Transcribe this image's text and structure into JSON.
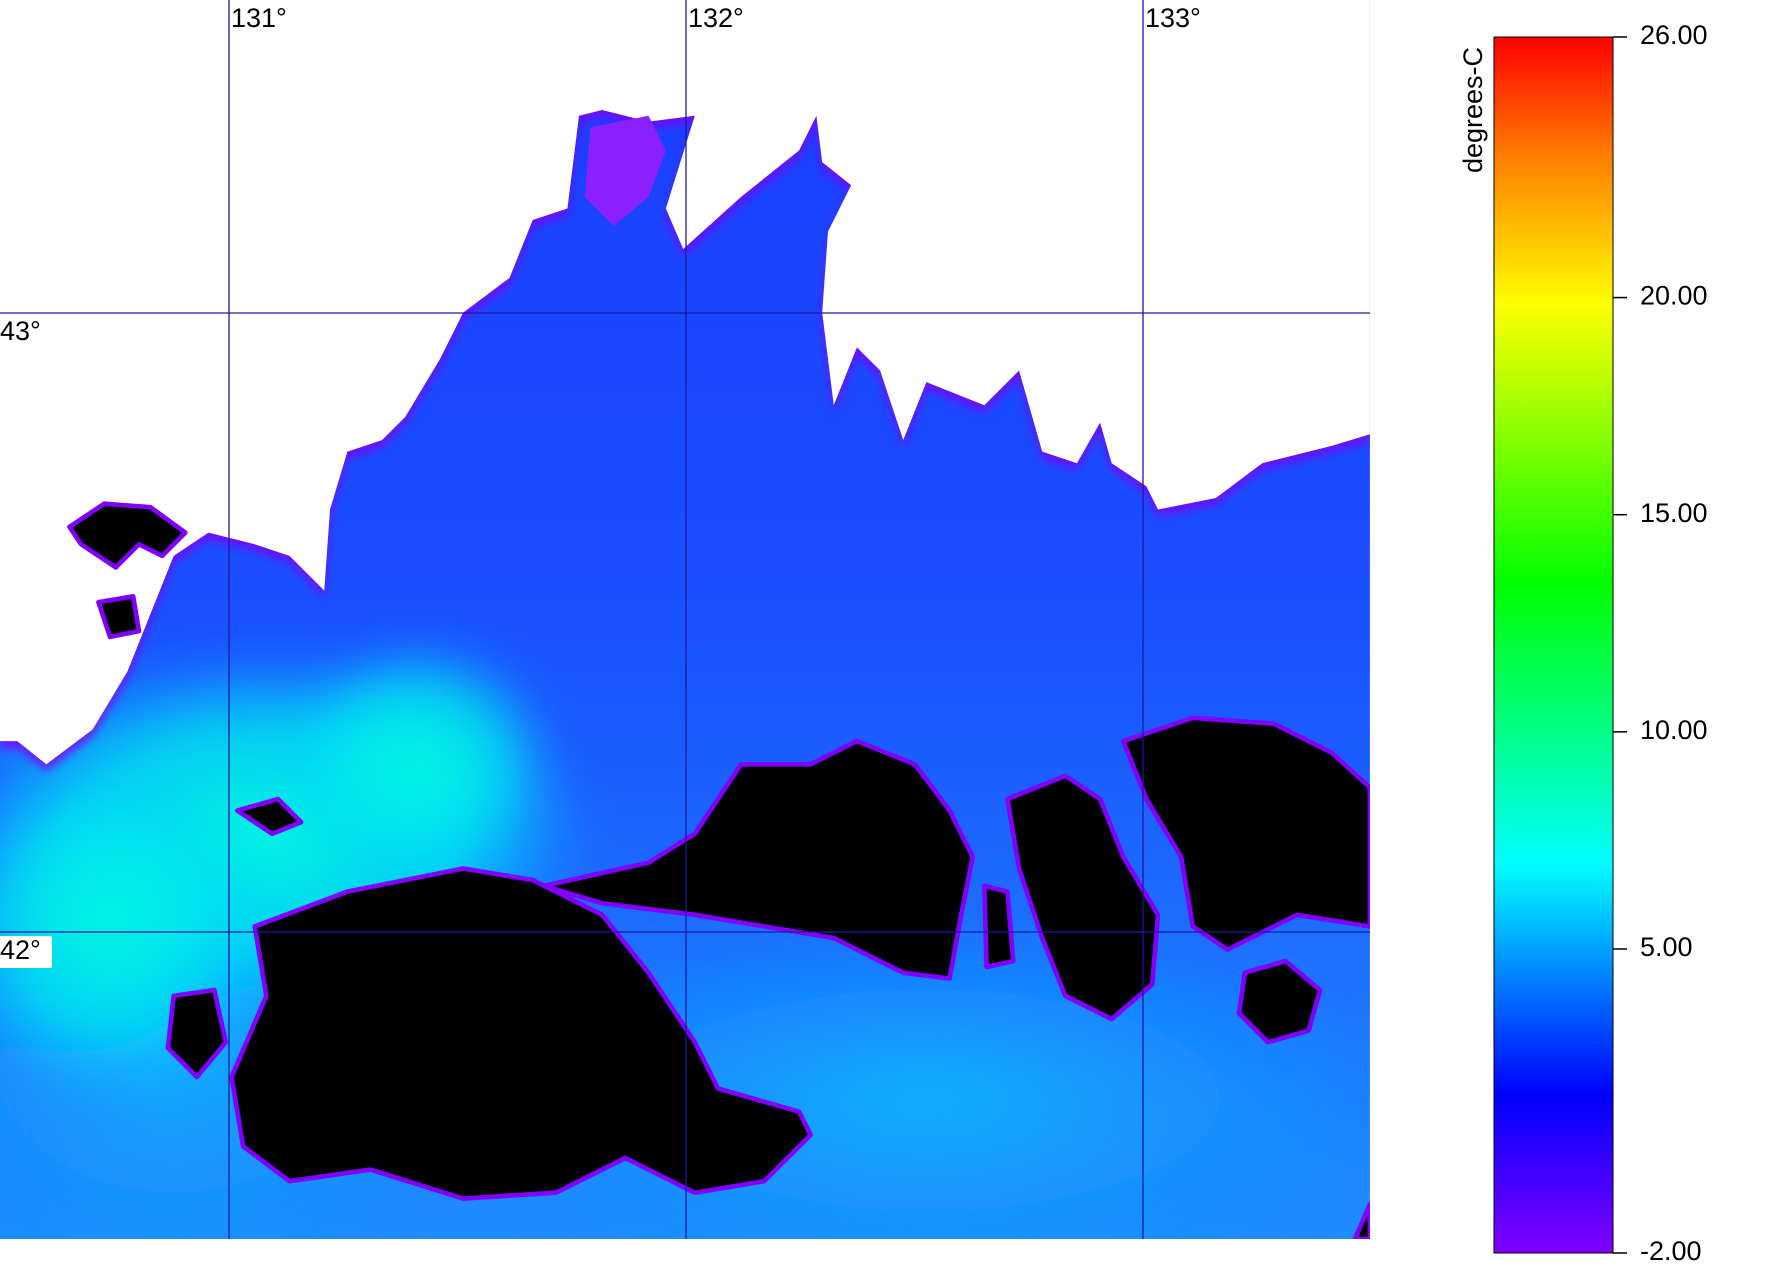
{
  "map": {
    "lon_ticks": [
      {
        "value": 131,
        "label": "131°"
      },
      {
        "value": 132,
        "label": "132°"
      },
      {
        "value": 133,
        "label": "133°"
      }
    ],
    "lat_ticks": [
      {
        "value": 43,
        "label": "43°"
      },
      {
        "value": 42,
        "label": "42°"
      }
    ]
  },
  "colorbar": {
    "label": "degrees-C",
    "lim": [
      -2,
      26
    ],
    "ticks": [
      {
        "value": 26,
        "label": "26.00"
      },
      {
        "value": 20,
        "label": "20.00"
      },
      {
        "value": 15,
        "label": "15.00"
      },
      {
        "value": 10,
        "label": "10.00"
      },
      {
        "value": 5,
        "label": "5.00"
      },
      {
        "value": -2,
        "label": "-2.00"
      }
    ]
  }
}
